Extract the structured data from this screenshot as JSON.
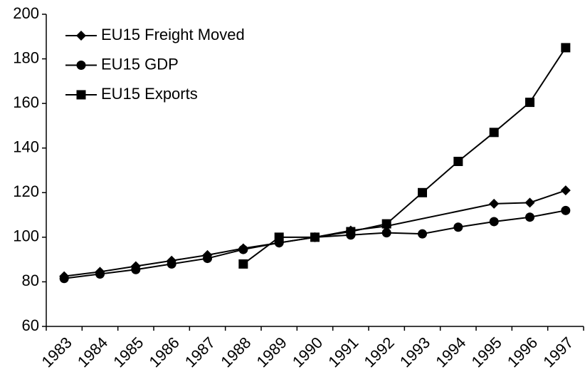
{
  "chart_data": {
    "type": "line",
    "series": [
      {
        "name": "EU15 Freight Moved",
        "color": "#000000",
        "marker": "diamond",
        "x": [
          1983,
          1984,
          1985,
          1986,
          1987,
          1988,
          1989,
          1990,
          1991,
          1992,
          1995,
          1996,
          1997
        ],
        "values": [
          82.5,
          84.5,
          87,
          89.5,
          92,
          95,
          97.5,
          100,
          103,
          105,
          115,
          115.5,
          121
        ]
      },
      {
        "name": "EU15 GDP",
        "color": "#000000",
        "marker": "circle",
        "x": [
          1983,
          1984,
          1985,
          1986,
          1987,
          1988,
          1989,
          1990,
          1991,
          1992,
          1993,
          1994,
          1995,
          1996,
          1997
        ],
        "values": [
          81.5,
          83.5,
          85.5,
          88,
          90.5,
          94.5,
          97.5,
          100,
          101,
          102,
          101.5,
          104.5,
          107,
          109,
          112
        ]
      },
      {
        "name": "EU15 Exports",
        "color": "#000000",
        "marker": "square",
        "x": [
          1988,
          1989,
          1990,
          1991,
          1992,
          1993,
          1994,
          1995,
          1996,
          1997
        ],
        "values": [
          88,
          100,
          100,
          102.5,
          106,
          120,
          134,
          147,
          160.5,
          185
        ]
      }
    ],
    "xlim": [
      1982.5,
      1997.5
    ],
    "xticks": [
      1983,
      1984,
      1985,
      1986,
      1987,
      1988,
      1989,
      1990,
      1991,
      1992,
      1993,
      1994,
      1995,
      1996,
      1997
    ],
    "ylim": [
      60,
      200
    ],
    "yticks": [
      60,
      80,
      100,
      120,
      140,
      160,
      180,
      200
    ],
    "grid": false,
    "legend": "top-left"
  }
}
